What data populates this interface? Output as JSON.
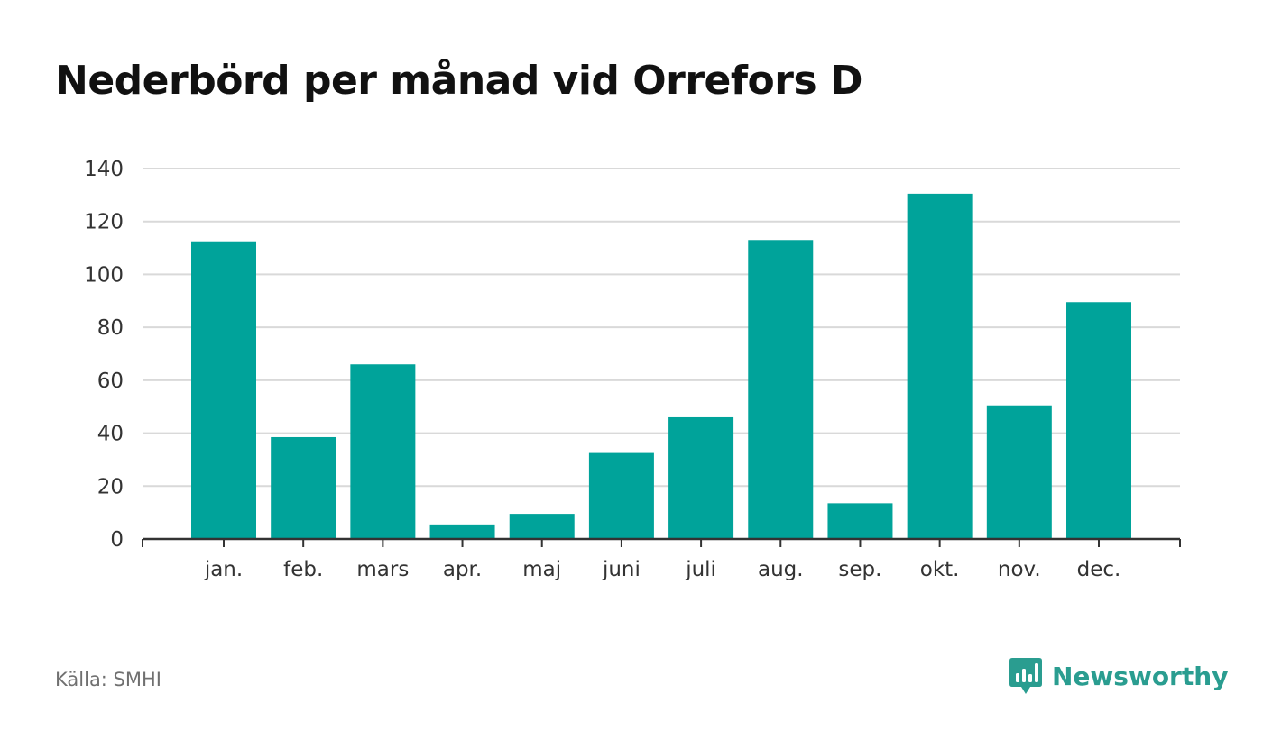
{
  "title": "Nederbörd per månad vid Orrefors D",
  "source": "Källa: SMHI",
  "brand": {
    "name": "Newsworthy",
    "icon": "newsworthy-logo-icon",
    "color": "#2a9d90"
  },
  "colors": {
    "bar": "#00a39a",
    "grid": "#d9d9d9",
    "axis": "#333333"
  },
  "chart_data": {
    "type": "bar",
    "title": "Nederbörd per månad vid Orrefors D",
    "xlabel": "",
    "ylabel": "",
    "categories": [
      "jan.",
      "feb.",
      "mars",
      "apr.",
      "maj",
      "juni",
      "juli",
      "aug.",
      "sep.",
      "okt.",
      "nov.",
      "dec."
    ],
    "values": [
      112.5,
      38.5,
      66,
      5.5,
      9.5,
      32.5,
      46,
      113,
      13.5,
      130.5,
      50.5,
      89.5
    ],
    "ylim": [
      0,
      140
    ],
    "yticks": [
      "0",
      "20",
      "40",
      "60",
      "80",
      "100",
      "120",
      "140"
    ],
    "grid": true,
    "legend": "none"
  }
}
